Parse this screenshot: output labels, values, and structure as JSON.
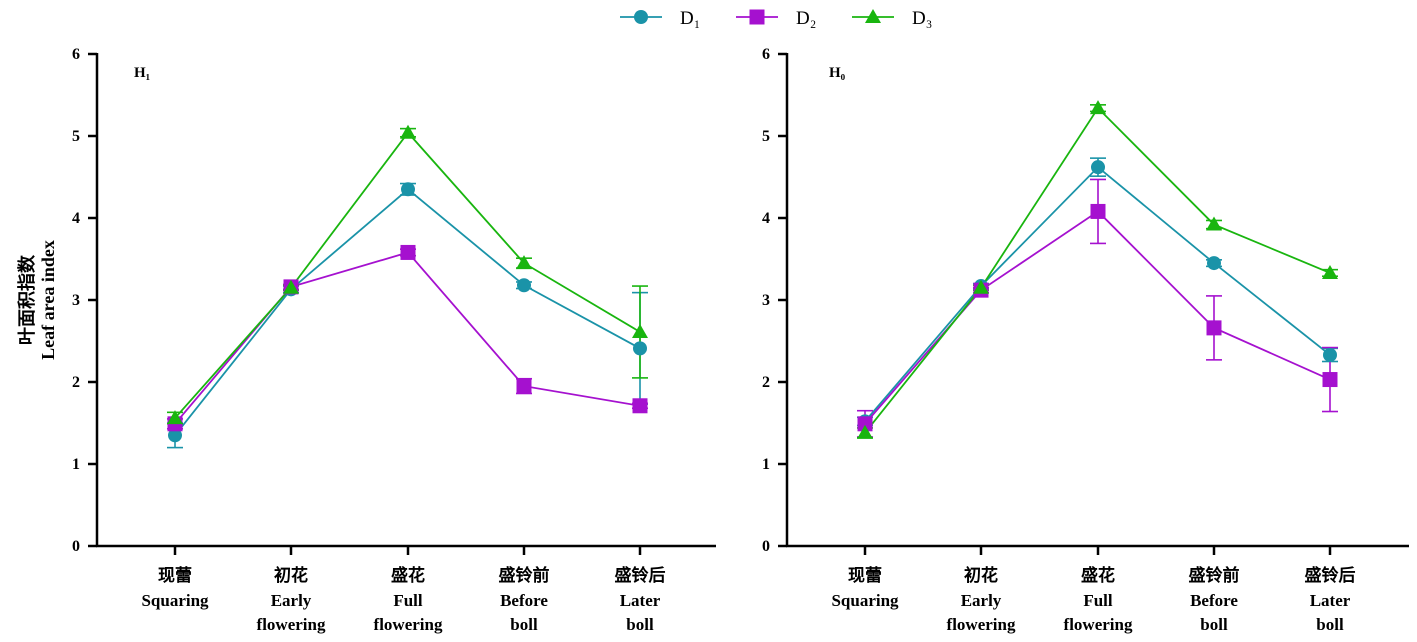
{
  "legend": [
    {
      "label": "D₁",
      "color": "#1a93a8",
      "marker": "circle"
    },
    {
      "label": "D₂",
      "color": "#a511cf",
      "marker": "square"
    },
    {
      "label": "D₃",
      "color": "#19b50f",
      "marker": "triangle"
    }
  ],
  "y_axis_label": {
    "zh": "叶面积指数",
    "en": "Leaf area index"
  },
  "chart_data": [
    {
      "type": "line",
      "panel_tag": "H₁",
      "ylim": [
        0,
        6
      ],
      "yticks": [
        "0",
        "1",
        "2",
        "3",
        "4",
        "5",
        "6"
      ],
      "categories": [
        {
          "zh": "现蕾",
          "en": [
            "Squaring"
          ]
        },
        {
          "zh": "初花",
          "en": [
            "Early",
            "flowering"
          ]
        },
        {
          "zh": "盛花",
          "en": [
            "Full",
            "flowering"
          ]
        },
        {
          "zh": "盛铃前",
          "en": [
            "Before",
            "boll"
          ]
        },
        {
          "zh": "盛铃后",
          "en": [
            "Later",
            "boll"
          ]
        }
      ],
      "series": [
        {
          "name": "D₁",
          "values": [
            1.35,
            3.13,
            4.35,
            3.18,
            2.41
          ],
          "errors": [
            0.15,
            0.04,
            0.07,
            0.04,
            0.68
          ]
        },
        {
          "name": "D₂",
          "values": [
            1.49,
            3.16,
            3.58,
            1.95,
            1.71
          ],
          "errors": [
            0.06,
            0.03,
            0.04,
            0.09,
            0.03
          ]
        },
        {
          "name": "D₃",
          "values": [
            1.56,
            3.15,
            5.04,
            3.45,
            2.61
          ],
          "errors": [
            0.07,
            0.03,
            0.05,
            0.06,
            0.56
          ]
        }
      ]
    },
    {
      "type": "line",
      "panel_tag": "H₀",
      "ylim": [
        0,
        6
      ],
      "yticks": [
        "0",
        "1",
        "2",
        "3",
        "4",
        "5",
        "6"
      ],
      "categories": [
        {
          "zh": "现蕾",
          "en": [
            "Squaring"
          ]
        },
        {
          "zh": "初花",
          "en": [
            "Early",
            "flowering"
          ]
        },
        {
          "zh": "盛花",
          "en": [
            "Full",
            "flowering"
          ]
        },
        {
          "zh": "盛铃前",
          "en": [
            "Before",
            "boll"
          ]
        },
        {
          "zh": "盛铃后",
          "en": [
            "Later",
            "boll"
          ]
        }
      ],
      "series": [
        {
          "name": "D₁",
          "values": [
            1.52,
            3.17,
            4.62,
            3.45,
            2.33
          ],
          "errors": [
            0.05,
            0.03,
            0.11,
            0.04,
            0.08
          ]
        },
        {
          "name": "D₂",
          "values": [
            1.49,
            3.12,
            4.08,
            2.66,
            2.03
          ],
          "errors": [
            0.16,
            0.03,
            0.39,
            0.39,
            0.39
          ]
        },
        {
          "name": "D₃",
          "values": [
            1.38,
            3.15,
            5.34,
            3.92,
            3.33
          ],
          "errors": [
            0.06,
            0.03,
            0.04,
            0.05,
            0.04
          ]
        }
      ]
    }
  ]
}
